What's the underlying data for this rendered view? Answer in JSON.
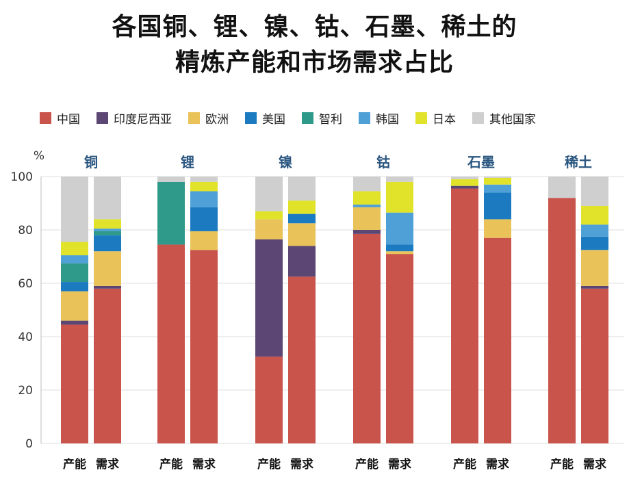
{
  "title": {
    "line1": "各国铜、锂、镍、钴、石墨、稀土的",
    "line2": "精炼产能和市场需求占比"
  },
  "legend": [
    {
      "name": "中国",
      "color": "#c9544c"
    },
    {
      "name": "印度尼西亚",
      "color": "#5c4673"
    },
    {
      "name": "欧洲",
      "color": "#e9c35a"
    },
    {
      "name": "美国",
      "color": "#1c7ac0"
    },
    {
      "name": "智利",
      "color": "#2f9a8a"
    },
    {
      "name": "韩国",
      "color": "#4ea0d6"
    },
    {
      "name": "日本",
      "color": "#e0e32a"
    },
    {
      "name": "其他国家",
      "color": "#cfcfcf"
    }
  ],
  "chart_data": {
    "type": "bar",
    "stacked": true,
    "ylabel": "%",
    "ylim": [
      0,
      100
    ],
    "yticks": [
      0,
      20,
      40,
      60,
      80,
      100
    ],
    "bar_labels": [
      "产能",
      "需求"
    ],
    "series_names": [
      "中国",
      "印度尼西亚",
      "欧洲",
      "美国",
      "智利",
      "韩国",
      "日本",
      "其他国家"
    ],
    "groups": [
      {
        "name": "铜",
        "bars": [
          {
            "label": "产能",
            "values": [
              44.5,
              1.5,
              11,
              3.5,
              7,
              3,
              5,
              24.5
            ]
          },
          {
            "label": "需求",
            "values": [
              58,
              1,
              13,
              6,
              1.5,
              1,
              3.5,
              16
            ]
          }
        ]
      },
      {
        "name": "锂",
        "bars": [
          {
            "label": "产能",
            "values": [
              74.5,
              0,
              0,
              0,
              23.5,
              0,
              0,
              2
            ]
          },
          {
            "label": "需求",
            "values": [
              72.5,
              0,
              7,
              9,
              0,
              6,
              3.5,
              2
            ]
          }
        ]
      },
      {
        "name": "镍",
        "bars": [
          {
            "label": "产能",
            "values": [
              32.5,
              44,
              7.5,
              0,
              0,
              0,
              3,
              13
            ]
          },
          {
            "label": "需求",
            "values": [
              62.5,
              11.5,
              8.5,
              3.5,
              0,
              0,
              5,
              9
            ]
          }
        ]
      },
      {
        "name": "钴",
        "bars": [
          {
            "label": "产能",
            "values": [
              78.5,
              1.5,
              8.5,
              0,
              0,
              1,
              5,
              5.5
            ]
          },
          {
            "label": "需求",
            "values": [
              71,
              0,
              1,
              2.5,
              0,
              12,
              11.5,
              2
            ]
          }
        ]
      },
      {
        "name": "石墨",
        "bars": [
          {
            "label": "产能",
            "values": [
              95.5,
              1,
              0,
              0,
              0,
              0,
              2.5,
              1
            ]
          },
          {
            "label": "需求",
            "values": [
              77,
              0,
              7,
              10,
              0,
              3,
              2.5,
              0.5
            ]
          }
        ]
      },
      {
        "name": "稀土",
        "bars": [
          {
            "label": "产能",
            "values": [
              92,
              0,
              0,
              0,
              0,
              0,
              0,
              8
            ]
          },
          {
            "label": "需求",
            "values": [
              58,
              1,
              13.5,
              5,
              0,
              4.5,
              7,
              11
            ]
          }
        ]
      }
    ]
  }
}
